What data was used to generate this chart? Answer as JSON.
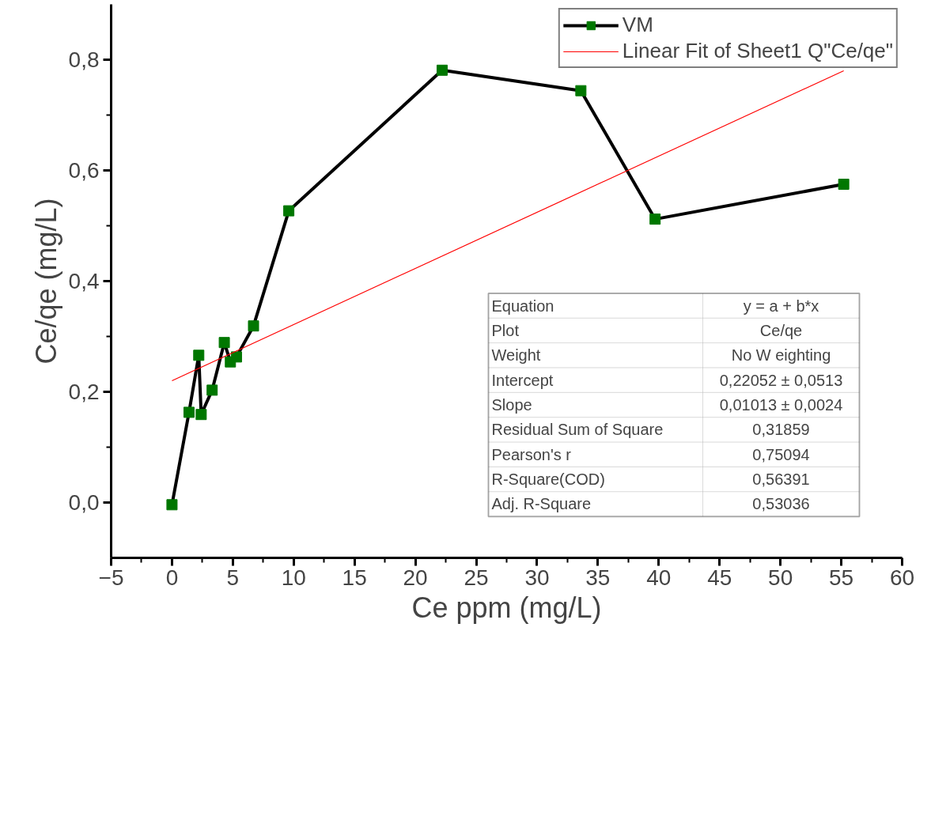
{
  "chart_data": {
    "type": "line",
    "xlabel": "Ce ppm (mg/L)",
    "ylabel": "Ce/qe (mg/L)",
    "xlim": [
      -5,
      60
    ],
    "ylim": [
      -0.1,
      0.9
    ],
    "xticks": [
      -5,
      0,
      5,
      10,
      15,
      20,
      25,
      30,
      35,
      40,
      45,
      50,
      55,
      60
    ],
    "yticks": [
      {
        "value": 0,
        "label": "0,0"
      },
      {
        "value": 0.2,
        "label": "0,2"
      },
      {
        "value": 0.4,
        "label": "0,4"
      },
      {
        "value": 0.6,
        "label": "0,6"
      },
      {
        "value": 0.8,
        "label": "0,8"
      }
    ],
    "grid": false,
    "legend": "top right",
    "marker": "square",
    "line_style": "solid",
    "series": [
      {
        "name": "VM",
        "color": "#007700",
        "x": [
          0,
          1.4,
          2.2,
          2.4,
          3.3,
          4.3,
          4.8,
          5.3,
          6.7,
          9.6,
          22.2,
          33.6,
          39.7,
          55.2
        ],
        "values": [
          -0.004,
          0.163,
          0.266,
          0.159,
          0.203,
          0.289,
          0.254,
          0.263,
          0.319,
          0.527,
          0.781,
          0.744,
          0.512,
          0.575
        ]
      },
      {
        "name": "Linear Fit of Sheet1 Q\"Ce/qe\"",
        "type": "line",
        "marker": "none",
        "color": "#ff0000",
        "x": [
          0,
          55.2
        ],
        "values": [
          0.22,
          0.78
        ]
      }
    ],
    "annotations": [
      "Equation",
      "y = a + b*x",
      "Plot",
      "Ce/qe",
      "Weight",
      "No W eighting",
      "Intercept",
      "0,22052 ± 0,0513",
      "Slope",
      "0,01013 ± 0,0024",
      "Residual Sum of Square",
      "0,31859",
      "Pearson's r",
      "0,75094",
      "R-Square(COD)",
      "0,56391",
      "Adj. R-Square",
      "0,53036"
    ]
  }
}
